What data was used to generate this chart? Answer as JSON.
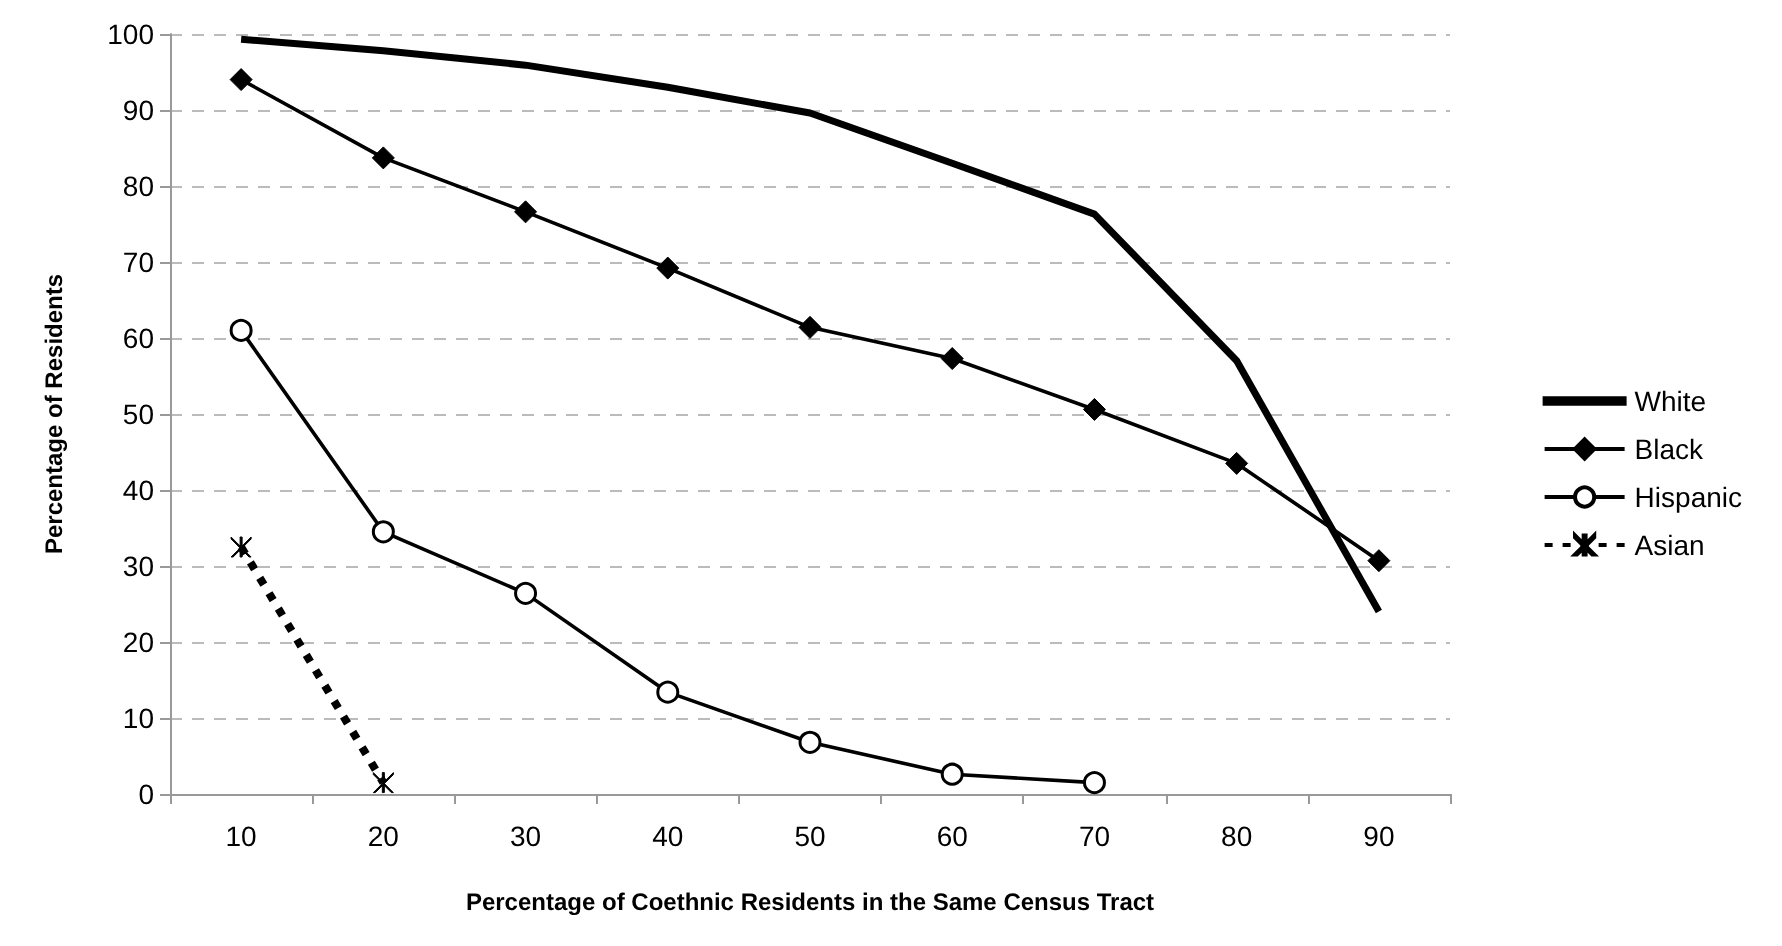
{
  "chart_data": {
    "type": "line",
    "xlabel": "Percentage of Coethnic Residents in the Same Census Tract",
    "ylabel": "Percentage of Residents",
    "categories": [
      "10",
      "20",
      "30",
      "40",
      "50",
      "60",
      "70",
      "80",
      "90"
    ],
    "series": [
      {
        "name": "White",
        "color": "#000000",
        "marker": "none",
        "line_style": "solid",
        "values": [
          99.3,
          97.8,
          95.9,
          93,
          89.6,
          83,
          76.3,
          57,
          24
        ]
      },
      {
        "name": "Black",
        "color": "#000000",
        "marker": "diamond",
        "line_style": "solid",
        "values": [
          94,
          83.7,
          76.6,
          69.2,
          61.4,
          57.3,
          50.6,
          43.5,
          30.7
        ]
      },
      {
        "name": "Hispanic",
        "color": "#000000",
        "marker": "circle",
        "line_style": "solid",
        "values": [
          61,
          34.5,
          26.4,
          13.4,
          6.8,
          2.6,
          1.5,
          null,
          null
        ]
      },
      {
        "name": "Asian",
        "color": "#000000",
        "marker": "cross",
        "line_style": "dashed",
        "values": [
          32.5,
          1.5,
          null,
          null,
          null,
          null,
          null,
          null,
          null
        ]
      }
    ],
    "ylim": [
      0,
      100
    ],
    "yticks": [
      0,
      10,
      20,
      30,
      40,
      50,
      60,
      70,
      80,
      90,
      100
    ],
    "grid": "y",
    "legend": "right"
  }
}
